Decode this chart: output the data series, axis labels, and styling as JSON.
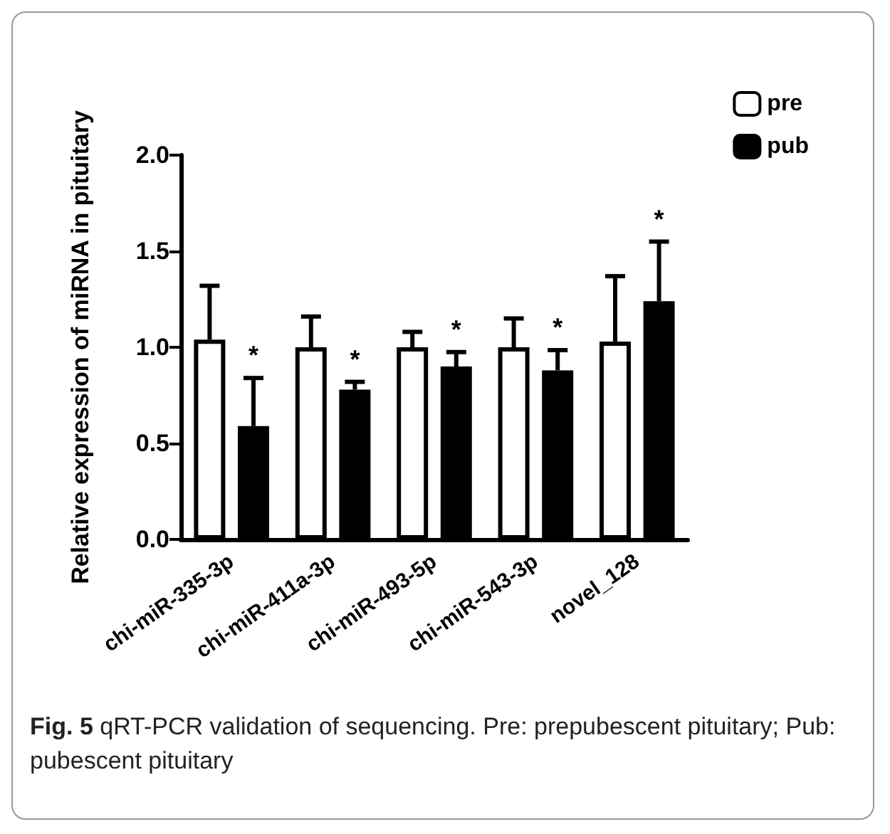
{
  "chart_data": {
    "type": "bar",
    "ylabel": "Relative expression of miRNA in pituitary",
    "categories": [
      "chi-miR-335-3p",
      "chi-miR-411a-3p",
      "chi-miR-493-5p",
      "chi-miR-543-3p",
      "novel_128"
    ],
    "series": [
      {
        "name": "pre",
        "color": "#ffffff",
        "values": [
          1.04,
          1.0,
          1.0,
          1.0,
          1.03
        ],
        "errors": [
          0.28,
          0.16,
          0.08,
          0.15,
          0.34
        ]
      },
      {
        "name": "pub",
        "color": "#000000",
        "values": [
          0.59,
          0.78,
          0.9,
          0.88,
          1.24
        ],
        "errors": [
          0.25,
          0.04,
          0.075,
          0.105,
          0.31
        ],
        "value_labels": [
          "*",
          "*",
          "*",
          "*",
          "*"
        ]
      }
    ],
    "ylim": [
      0,
      2.0
    ],
    "yticks": [
      {
        "value": 0,
        "label": "0.0"
      },
      {
        "value": 0.5,
        "label": "0.5"
      },
      {
        "value": 1.0,
        "label": "1.0"
      },
      {
        "value": 1.5,
        "label": "1.5"
      },
      {
        "value": 2.0,
        "label": "2.0"
      }
    ],
    "grid": false,
    "legend": "top right",
    "annotations": [
      "Fig. 5 qRT-PCR validation of sequencing. Pre: prepubescent pituitary; Pub: pubescent pituitary"
    ]
  }
}
